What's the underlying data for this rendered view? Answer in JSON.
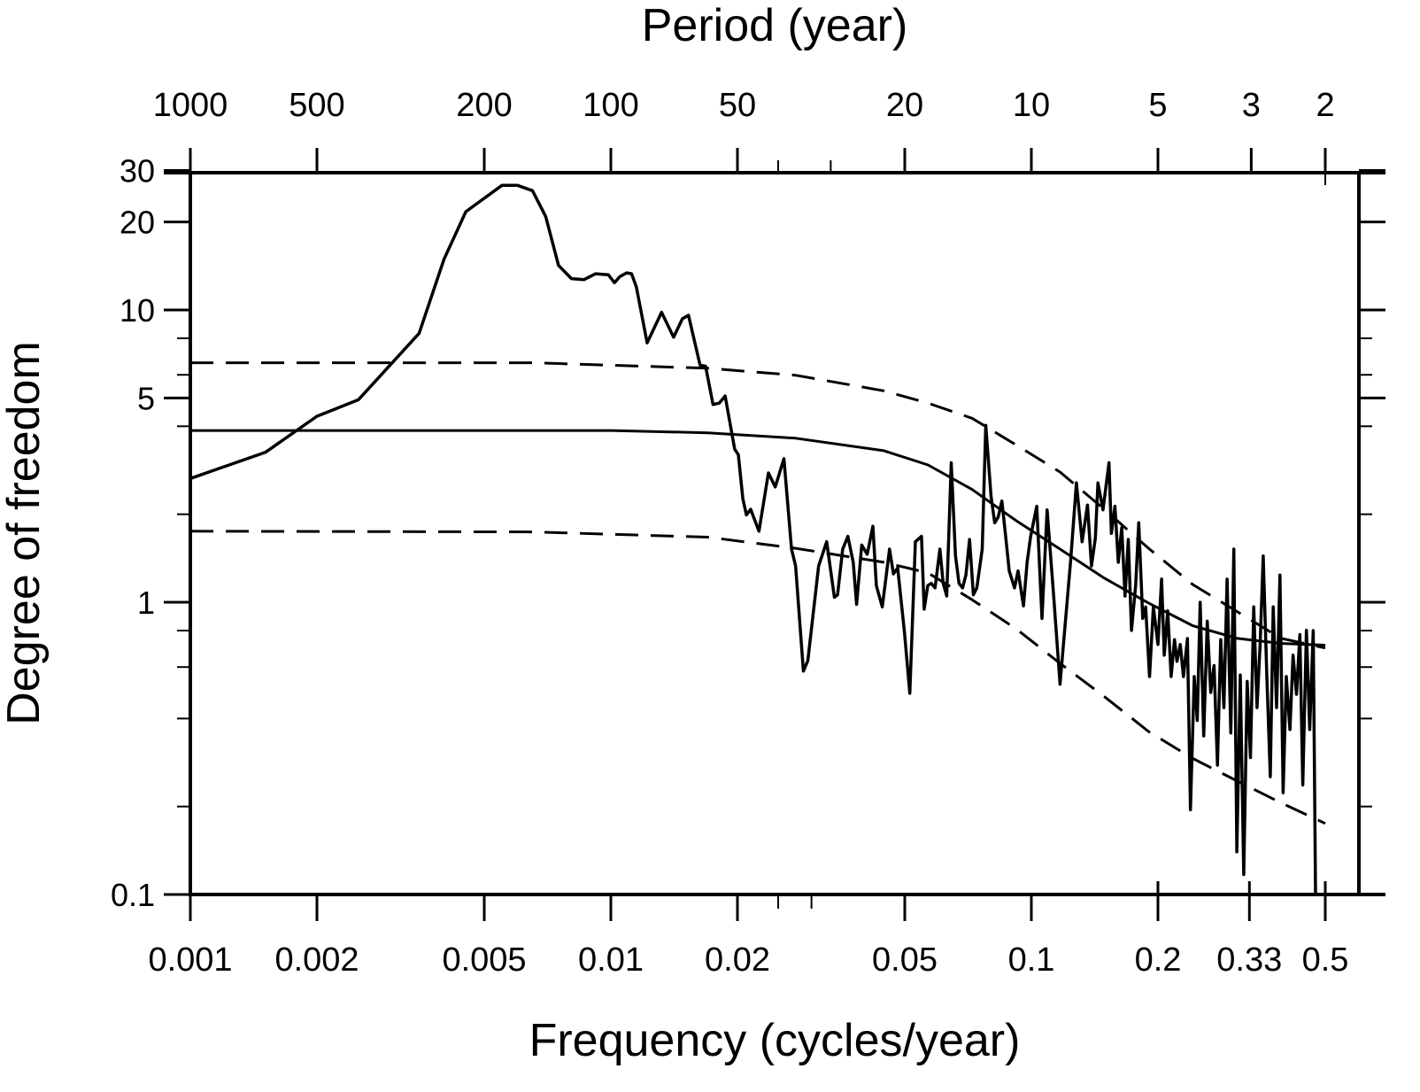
{
  "chart_data": {
    "type": "line",
    "title": "",
    "top_axis_title": "Period (year)",
    "xlabel": "Frequency (cycles/year)",
    "ylabel": "Degree of freedom",
    "x_scale": "log",
    "y_scale": "log",
    "xlim": [
      0.001,
      0.5
    ],
    "ylim": [
      0.1,
      29.4
    ],
    "grid": false,
    "legend": "none",
    "x_ticks": [
      {
        "value": 0.001,
        "label": "0.001"
      },
      {
        "value": 0.002,
        "label": "0.002"
      },
      {
        "value": 0.005,
        "label": "0.005"
      },
      {
        "value": 0.01,
        "label": "0.01"
      },
      {
        "value": 0.02,
        "label": "0.02"
      },
      {
        "value": 0.05,
        "label": "0.05"
      },
      {
        "value": 0.1,
        "label": "0.1"
      },
      {
        "value": 0.2,
        "label": "0.2"
      },
      {
        "value": 0.33,
        "label": "0.33"
      },
      {
        "value": 0.5,
        "label": "0.5"
      }
    ],
    "x_minor_ticks": [
      0.025,
      0.03
    ],
    "top_ticks": [
      {
        "period": 1000,
        "label": "1000"
      },
      {
        "period": 500,
        "label": "500"
      },
      {
        "period": 200,
        "label": "200"
      },
      {
        "period": 100,
        "label": "100"
      },
      {
        "period": 50,
        "label": "50"
      },
      {
        "period": 20,
        "label": "20"
      },
      {
        "period": 10,
        "label": "10"
      },
      {
        "period": 5,
        "label": "5"
      },
      {
        "period": 3,
        "label": "3"
      },
      {
        "period": 2,
        "label": "2"
      }
    ],
    "top_minor_ticks": [
      40,
      30
    ],
    "y_ticks": [
      {
        "value": 0.1,
        "label": "0.1"
      },
      {
        "value": 1,
        "label": "1"
      },
      {
        "value": 5,
        "label": "5"
      },
      {
        "value": 10,
        "label": "10"
      },
      {
        "value": 20,
        "label": "20"
      },
      {
        "value": 30,
        "label": "30"
      }
    ],
    "y_minor_ticks": [
      0.2,
      0.4,
      0.6,
      0.8,
      2,
      4,
      6,
      8
    ],
    "series": [
      {
        "name": "spectrum",
        "style": "solid",
        "points": [
          [
            0.001,
            2.65
          ],
          [
            0.00151,
            3.26
          ],
          [
            0.002,
            4.33
          ],
          [
            0.00251,
            4.93
          ],
          [
            0.0035,
            8.32
          ],
          [
            0.00401,
            14.9
          ],
          [
            0.00452,
            21.7
          ],
          [
            0.00551,
            26.7
          ],
          [
            0.006,
            26.7
          ],
          [
            0.00651,
            25.6
          ],
          [
            0.007,
            20.9
          ],
          [
            0.00751,
            14.2
          ],
          [
            0.00806,
            12.8
          ],
          [
            0.00864,
            12.7
          ],
          [
            0.0092,
            13.3
          ],
          [
            0.00986,
            13.2
          ],
          [
            0.0102,
            12.4
          ],
          [
            0.0105,
            13.0
          ],
          [
            0.0109,
            13.4
          ],
          [
            0.0112,
            13.3
          ],
          [
            0.0115,
            12.0
          ],
          [
            0.0122,
            7.72
          ],
          [
            0.0132,
            9.82
          ],
          [
            0.0141,
            8.07
          ],
          [
            0.0148,
            9.34
          ],
          [
            0.0153,
            9.59
          ],
          [
            0.0163,
            6.47
          ],
          [
            0.0168,
            6.42
          ],
          [
            0.0175,
            4.75
          ],
          [
            0.0181,
            4.8
          ],
          [
            0.0187,
            5.08
          ],
          [
            0.0192,
            4.1
          ],
          [
            0.0197,
            3.34
          ],
          [
            0.0201,
            3.2
          ],
          [
            0.0206,
            2.26
          ],
          [
            0.021,
            1.99
          ],
          [
            0.0215,
            2.08
          ],
          [
            0.0225,
            1.75
          ],
          [
            0.0237,
            2.77
          ],
          [
            0.0246,
            2.48
          ],
          [
            0.0258,
            3.1
          ],
          [
            0.0269,
            1.52
          ],
          [
            0.0275,
            1.33
          ],
          [
            0.0287,
            0.581
          ],
          [
            0.0294,
            0.631
          ],
          [
            0.0312,
            1.33
          ],
          [
            0.0326,
            1.61
          ],
          [
            0.034,
            1.04
          ],
          [
            0.0346,
            1.06
          ],
          [
            0.0356,
            1.52
          ],
          [
            0.0366,
            1.68
          ],
          [
            0.0377,
            1.37
          ],
          [
            0.0384,
            0.984
          ],
          [
            0.0395,
            1.57
          ],
          [
            0.0407,
            1.46
          ],
          [
            0.042,
            1.82
          ],
          [
            0.0428,
            1.14
          ],
          [
            0.0442,
            0.964
          ],
          [
            0.046,
            1.52
          ],
          [
            0.047,
            1.25
          ],
          [
            0.0481,
            1.31
          ],
          [
            0.0499,
            0.793
          ],
          [
            0.0514,
            0.488
          ],
          [
            0.053,
            1.61
          ],
          [
            0.0548,
            1.68
          ],
          [
            0.0556,
            0.947
          ],
          [
            0.0567,
            1.14
          ],
          [
            0.0578,
            1.16
          ],
          [
            0.059,
            1.12
          ],
          [
            0.0606,
            1.52
          ],
          [
            0.0617,
            1.16
          ],
          [
            0.0629,
            1.05
          ],
          [
            0.0645,
            3.0
          ],
          [
            0.066,
            1.44
          ],
          [
            0.0673,
            1.16
          ],
          [
            0.0686,
            1.12
          ],
          [
            0.0699,
            1.24
          ],
          [
            0.0713,
            1.64
          ],
          [
            0.0728,
            1.06
          ],
          [
            0.0742,
            1.12
          ],
          [
            0.0764,
            1.52
          ],
          [
            0.0779,
            4.03
          ],
          [
            0.0802,
            2.3
          ],
          [
            0.0818,
            1.87
          ],
          [
            0.0834,
            1.96
          ],
          [
            0.0851,
            2.22
          ],
          [
            0.0868,
            1.7
          ],
          [
            0.0886,
            1.28
          ],
          [
            0.0912,
            1.12
          ],
          [
            0.093,
            1.28
          ],
          [
            0.0958,
            0.972
          ],
          [
            0.0977,
            1.37
          ],
          [
            0.0996,
            1.68
          ],
          [
            0.103,
            2.13
          ],
          [
            0.106,
            0.88
          ],
          [
            0.109,
            2.07
          ],
          [
            0.113,
            1.05
          ],
          [
            0.117,
            0.524
          ],
          [
            0.12,
            0.801
          ],
          [
            0.124,
            1.39
          ],
          [
            0.128,
            2.56
          ],
          [
            0.132,
            1.61
          ],
          [
            0.136,
            2.15
          ],
          [
            0.139,
            1.33
          ],
          [
            0.142,
            1.66
          ],
          [
            0.144,
            2.56
          ],
          [
            0.148,
            2.07
          ],
          [
            0.153,
            3.0
          ],
          [
            0.155,
            1.72
          ],
          [
            0.158,
            2.13
          ],
          [
            0.161,
            1.37
          ],
          [
            0.164,
            1.8
          ],
          [
            0.167,
            1.05
          ],
          [
            0.17,
            1.64
          ],
          [
            0.173,
            0.801
          ],
          [
            0.177,
            1.14
          ],
          [
            0.18,
            1.87
          ],
          [
            0.184,
            0.88
          ],
          [
            0.187,
            0.964
          ],
          [
            0.191,
            0.557
          ],
          [
            0.195,
            0.964
          ],
          [
            0.2,
            0.717
          ],
          [
            0.204,
            1.2
          ],
          [
            0.207,
            0.659
          ],
          [
            0.211,
            0.934
          ],
          [
            0.215,
            0.557
          ],
          [
            0.219,
            0.745
          ],
          [
            0.222,
            0.628
          ],
          [
            0.226,
            0.717
          ],
          [
            0.23,
            0.557
          ],
          [
            0.235,
            0.751
          ],
          [
            0.239,
            0.195
          ],
          [
            0.244,
            0.557
          ],
          [
            0.248,
            0.394
          ],
          [
            0.252,
            1.0
          ],
          [
            0.257,
            0.349
          ],
          [
            0.262,
            0.861
          ],
          [
            0.267,
            0.491
          ],
          [
            0.272,
            0.607
          ],
          [
            0.277,
            0.277
          ],
          [
            0.282,
            0.745
          ],
          [
            0.287,
            0.436
          ],
          [
            0.292,
            1.2
          ],
          [
            0.298,
            0.357
          ],
          [
            0.303,
            1.52
          ],
          [
            0.308,
            0.14
          ],
          [
            0.314,
            0.564
          ],
          [
            0.32,
            0.117
          ],
          [
            0.326,
            0.536
          ],
          [
            0.332,
            0.294
          ],
          [
            0.338,
            0.964
          ],
          [
            0.344,
            0.436
          ],
          [
            0.35,
            0.717
          ],
          [
            0.356,
            1.44
          ],
          [
            0.363,
            0.557
          ],
          [
            0.37,
            0.253
          ],
          [
            0.376,
            0.964
          ],
          [
            0.383,
            0.436
          ],
          [
            0.39,
            1.24
          ],
          [
            0.397,
            0.223
          ],
          [
            0.404,
            0.557
          ],
          [
            0.412,
            0.367
          ],
          [
            0.419,
            0.659
          ],
          [
            0.427,
            0.484
          ],
          [
            0.435,
            0.775
          ],
          [
            0.442,
            0.237
          ],
          [
            0.451,
            0.801
          ],
          [
            0.459,
            0.367
          ],
          [
            0.468,
            0.8
          ],
          [
            0.474,
            0.1
          ]
        ]
      },
      {
        "name": "red-noise background",
        "style": "solid",
        "points": [
          [
            0.001,
            3.87
          ],
          [
            0.01,
            3.87
          ],
          [
            0.017,
            3.8
          ],
          [
            0.0275,
            3.64
          ],
          [
            0.0446,
            3.3
          ],
          [
            0.0568,
            2.95
          ],
          [
            0.0723,
            2.43
          ],
          [
            0.0921,
            1.9
          ],
          [
            0.117,
            1.52
          ],
          [
            0.149,
            1.21
          ],
          [
            0.19,
            0.994
          ],
          [
            0.242,
            0.831
          ],
          [
            0.308,
            0.753
          ],
          [
            0.392,
            0.723
          ],
          [
            0.5,
            0.713
          ]
        ]
      },
      {
        "name": "upper confidence bound",
        "style": "dashed",
        "points": [
          [
            0.001,
            6.6
          ],
          [
            0.00652,
            6.6
          ],
          [
            0.017,
            6.32
          ],
          [
            0.0275,
            5.98
          ],
          [
            0.0446,
            5.29
          ],
          [
            0.0568,
            4.8
          ],
          [
            0.0723,
            4.26
          ],
          [
            0.0921,
            3.45
          ],
          [
            0.117,
            2.79
          ],
          [
            0.149,
            2.08
          ],
          [
            0.19,
            1.53
          ],
          [
            0.242,
            1.15
          ],
          [
            0.308,
            0.93
          ],
          [
            0.392,
            0.753
          ],
          [
            0.5,
            0.697
          ]
        ]
      },
      {
        "name": "lower confidence bound",
        "style": "dashed",
        "points": [
          [
            0.001,
            1.75
          ],
          [
            0.00652,
            1.74
          ],
          [
            0.017,
            1.67
          ],
          [
            0.0275,
            1.53
          ],
          [
            0.0446,
            1.37
          ],
          [
            0.0568,
            1.26
          ],
          [
            0.0723,
            1.02
          ],
          [
            0.0921,
            0.81
          ],
          [
            0.117,
            0.618
          ],
          [
            0.149,
            0.476
          ],
          [
            0.19,
            0.361
          ],
          [
            0.242,
            0.292
          ],
          [
            0.308,
            0.245
          ],
          [
            0.392,
            0.206
          ],
          [
            0.5,
            0.175
          ]
        ]
      }
    ]
  }
}
